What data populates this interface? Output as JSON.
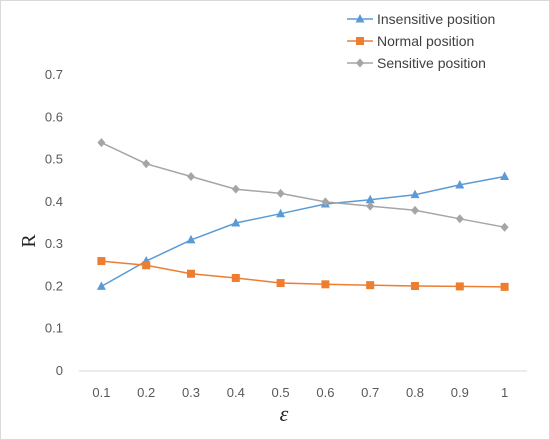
{
  "chart_data": {
    "type": "line",
    "title": "",
    "xlabel": "ε",
    "ylabel": "R",
    "x": [
      0.1,
      0.2,
      0.3,
      0.4,
      0.5,
      0.6,
      0.7,
      0.8,
      0.9,
      1
    ],
    "x_tick_labels": [
      "0.1",
      "0.2",
      "0.3",
      "0.4",
      "0.5",
      "0.6",
      "0.7",
      "0.8",
      "0.9",
      "1"
    ],
    "ylim": [
      0,
      0.7
    ],
    "y_ticks": [
      0,
      0.1,
      0.2,
      0.3,
      0.4,
      0.5,
      0.6,
      0.7
    ],
    "y_tick_labels": [
      "0",
      "0.1",
      "0.2",
      "0.3",
      "0.4",
      "0.5",
      "0.6",
      "0.7"
    ],
    "grid": false,
    "legend_position": "top-right",
    "series": [
      {
        "name": "Insensitive position",
        "color": "#5b9bd5",
        "marker": "triangle",
        "values": [
          0.2,
          0.26,
          0.31,
          0.35,
          0.372,
          0.395,
          0.405,
          0.417,
          0.44,
          0.46
        ]
      },
      {
        "name": "Normal position",
        "color": "#ed7d31",
        "marker": "square",
        "values": [
          0.26,
          0.25,
          0.23,
          0.22,
          0.208,
          0.205,
          0.203,
          0.201,
          0.2,
          0.199
        ]
      },
      {
        "name": "Sensitive position",
        "color": "#a5a5a5",
        "marker": "diamond",
        "values": [
          0.54,
          0.49,
          0.46,
          0.43,
          0.42,
          0.4,
          0.39,
          0.38,
          0.36,
          0.34
        ]
      }
    ]
  }
}
